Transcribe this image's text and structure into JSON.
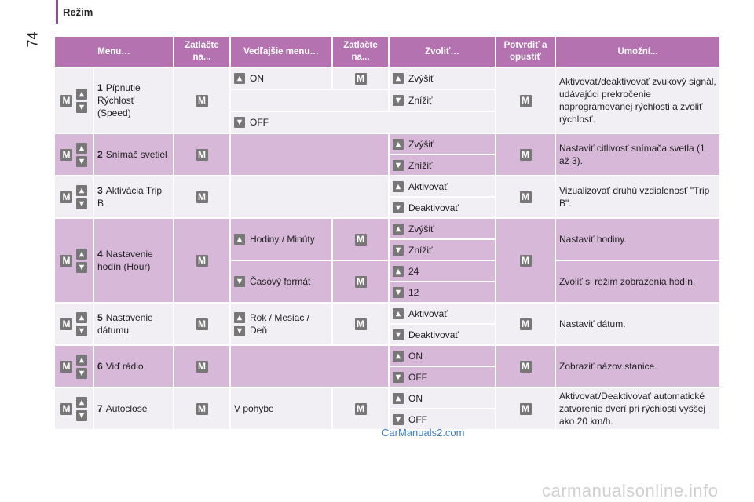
{
  "header": {
    "section": "Režim",
    "page_number": "74"
  },
  "columns": [
    "Menu…",
    "Zatlačte na...",
    "Vedľajšie menu…",
    "Zatlačte na...",
    "Zvoliť…",
    "Potvrdiť a opustiť",
    "Umožní..."
  ],
  "keys": {
    "m": "M"
  },
  "rows": [
    {
      "num": "1",
      "menu": "Pípnutie Rýchlosť (Speed)",
      "sub": [
        {
          "label": "ON",
          "choices": [
            {
              "label": "Zvýšiť"
            }
          ]
        },
        {
          "label": "",
          "choices": [
            {
              "label": "Znížiť"
            }
          ]
        },
        {
          "label": "OFF",
          "choices": []
        }
      ],
      "enables": "Aktivovať/deaktivovať zvukový signál, udávajúci prekročenie naprogramovanej rýchlosti a zvoliť rýchlosť."
    },
    {
      "num": "2",
      "menu": "Snímač svetiel",
      "choices": [
        "Zvýšiť",
        "Znížiť"
      ],
      "enables": "Nastaviť citlivosť snímača svetla (1 až 3)."
    },
    {
      "num": "3",
      "menu": "Aktivácia Trip B",
      "choices": [
        "Aktivovať",
        "Deaktivovať"
      ],
      "enables": "Vizualizovať druhú vzdialenosť \"Trip B\"."
    },
    {
      "num": "4",
      "menu": "Nastavenie hodín (Hour)",
      "sub1": "Hodiny / Minúty",
      "sub1_choices": [
        "Zvýšiť",
        "Znížiť"
      ],
      "sub1_enables": "Nastaviť hodiny.",
      "sub2": "Časový formát",
      "sub2_choices": [
        "24",
        "12"
      ],
      "sub2_enables": "Zvoliť si režim zobrazenia hodín."
    },
    {
      "num": "5",
      "menu": "Nastavenie dátumu",
      "sub": "Rok / Mesiac / Deň",
      "choices": [
        "Aktivovať",
        "Deaktivovať"
      ],
      "enables": "Nastaviť dátum."
    },
    {
      "num": "6",
      "menu": "Viď rádio",
      "choices": [
        "ON",
        "OFF"
      ],
      "enables": "Zobraziť názov stanice."
    },
    {
      "num": "7",
      "menu": "Autoclose",
      "sub": "V pohybe",
      "choices": [
        "ON",
        "OFF"
      ],
      "enables": "Aktivovať/Deaktivovať automatické zatvorenie dverí pri rýchlosti vyššej ako 20 km/h."
    }
  ],
  "footer": {
    "logo": "CarManuals2.com",
    "watermark": "carmanualsonline.info"
  },
  "colors": {
    "header_bg": "#b473b0",
    "row_light": "#f1eef4",
    "row_dark": "#d7b8d9",
    "key": "#777777"
  }
}
